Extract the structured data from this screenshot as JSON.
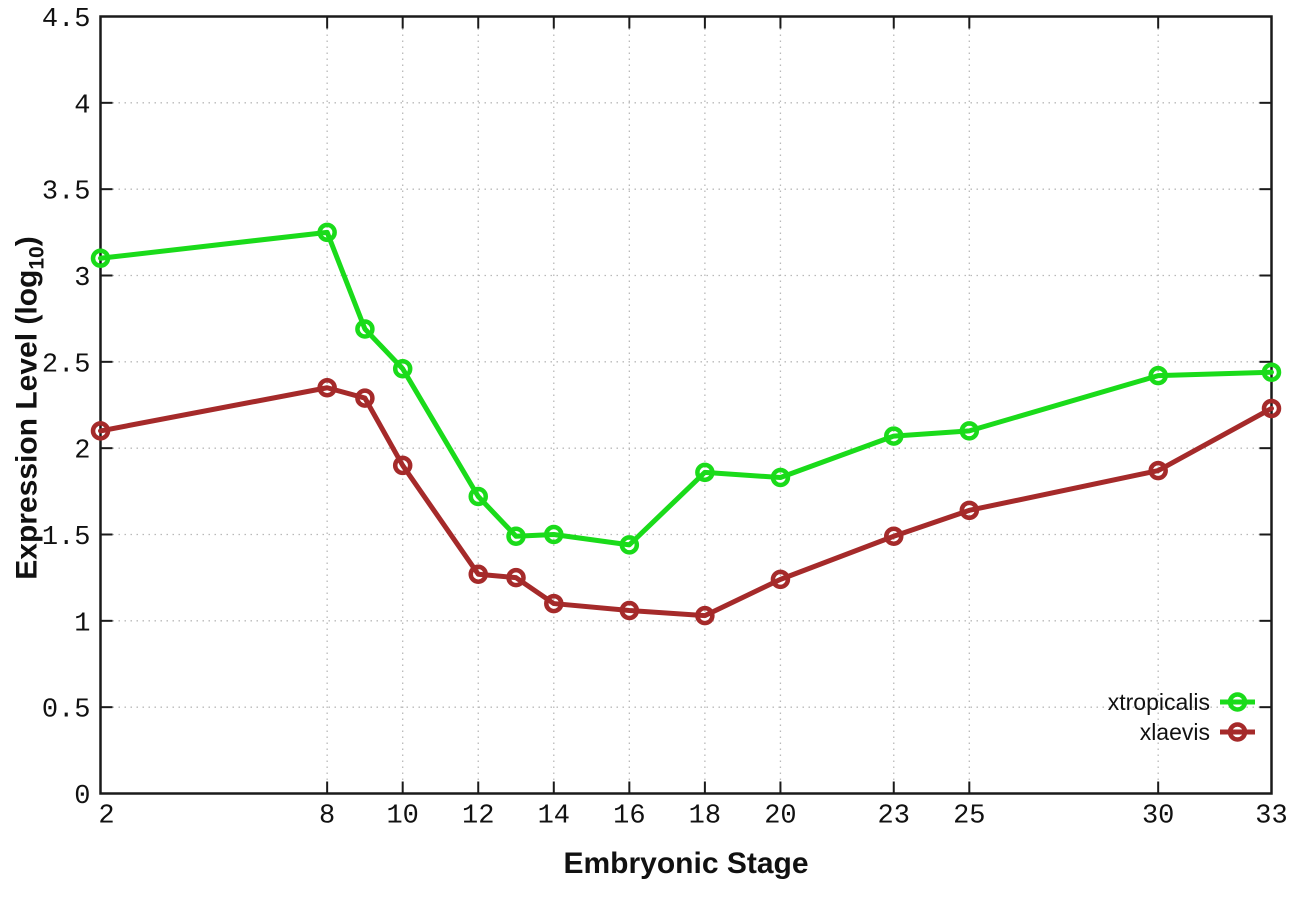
{
  "chart_data": {
    "type": "line",
    "title": "",
    "xlabel": "Embryonic Stage",
    "ylabel": {
      "main": "Expression Level (log",
      "sub": "10",
      "end": ")"
    },
    "xlim": [
      2,
      33
    ],
    "ylim": [
      0,
      4.5
    ],
    "grid": true,
    "legend_position": "inside-bottom-right",
    "marker": "open-circle",
    "x": [
      2,
      8,
      9,
      10,
      12,
      13,
      14,
      16,
      18,
      20,
      23,
      25,
      30,
      33
    ],
    "series": [
      {
        "name": "xtropicalis",
        "color": "#1adb1a",
        "values": [
          3.1,
          3.25,
          2.69,
          2.46,
          1.72,
          1.49,
          1.5,
          1.44,
          1.86,
          1.83,
          2.07,
          2.1,
          2.42,
          2.44
        ]
      },
      {
        "name": "xlaevis",
        "color": "#a52a2a",
        "values": [
          2.1,
          2.35,
          2.29,
          1.9,
          1.27,
          1.25,
          1.1,
          1.06,
          1.03,
          1.24,
          1.49,
          1.64,
          1.87,
          2.23
        ]
      }
    ],
    "xticks": {
      "values": [
        2,
        8,
        10,
        12,
        14,
        16,
        18,
        20,
        23,
        25,
        30,
        33
      ],
      "labels": [
        "2",
        "8",
        "10",
        "12",
        "14",
        "16",
        "18",
        "20",
        "23",
        "25",
        "30",
        "33"
      ]
    },
    "yticks": {
      "values": [
        0,
        0.5,
        1,
        1.5,
        2,
        2.5,
        3,
        3.5,
        4,
        4.5
      ],
      "labels": [
        "0",
        "0.5",
        "1",
        "1.5",
        "2",
        "2.5",
        "3",
        "3.5",
        "4",
        "4.5"
      ]
    },
    "colors": {
      "background": "#ffffff",
      "axis": "#1a1a1a",
      "grid": "#b9b9b9",
      "text": "#111111"
    }
  }
}
